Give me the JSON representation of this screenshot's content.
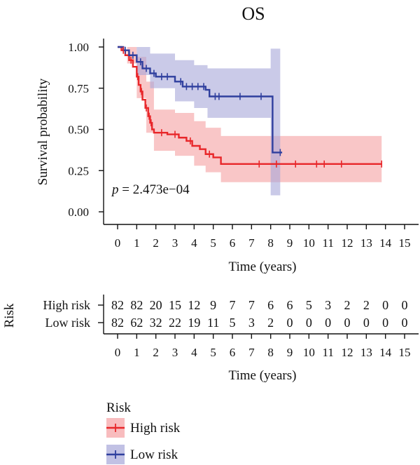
{
  "chart_data": {
    "type": "line",
    "title": "OS",
    "xlabel": "Time (years)",
    "ylabel": "Survival probability",
    "xlim": [
      0,
      15
    ],
    "ylim": [
      0,
      1
    ],
    "x_ticks": [
      0,
      1,
      2,
      3,
      4,
      5,
      6,
      7,
      8,
      9,
      10,
      11,
      12,
      13,
      14,
      15
    ],
    "y_ticks": [
      "0.00",
      "0.25",
      "0.50",
      "0.75",
      "1.00"
    ],
    "p_label": "p",
    "p_text": " = 2.473e−04",
    "series": [
      {
        "name": "High risk",
        "color": "#e8272a",
        "band_color": "#f5a0a2",
        "steps": [
          [
            0,
            1.0
          ],
          [
            0.2,
            0.98
          ],
          [
            0.4,
            0.95
          ],
          [
            0.6,
            0.92
          ],
          [
            0.8,
            0.88
          ],
          [
            1.0,
            0.82
          ],
          [
            1.1,
            0.77
          ],
          [
            1.2,
            0.73
          ],
          [
            1.3,
            0.68
          ],
          [
            1.45,
            0.63
          ],
          [
            1.6,
            0.58
          ],
          [
            1.7,
            0.54
          ],
          [
            1.8,
            0.5
          ],
          [
            1.9,
            0.48
          ],
          [
            2.6,
            0.47
          ],
          [
            3.2,
            0.45
          ],
          [
            3.6,
            0.43
          ],
          [
            3.9,
            0.4
          ],
          [
            4.3,
            0.38
          ],
          [
            4.6,
            0.35
          ],
          [
            5.0,
            0.33
          ],
          [
            5.4,
            0.29
          ],
          [
            13.8,
            0.29
          ]
        ],
        "upper": [
          [
            0,
            1.0
          ],
          [
            0.5,
            1.0
          ],
          [
            1.0,
            0.94
          ],
          [
            1.5,
            0.79
          ],
          [
            1.9,
            0.62
          ],
          [
            3.0,
            0.6
          ],
          [
            4.0,
            0.55
          ],
          [
            4.6,
            0.51
          ],
          [
            5.4,
            0.46
          ],
          [
            13.8,
            0.46
          ]
        ],
        "lower": [
          [
            0,
            1.0
          ],
          [
            0.5,
            0.9
          ],
          [
            1.0,
            0.69
          ],
          [
            1.5,
            0.48
          ],
          [
            1.9,
            0.37
          ],
          [
            3.0,
            0.34
          ],
          [
            4.0,
            0.28
          ],
          [
            4.6,
            0.24
          ],
          [
            5.4,
            0.18
          ],
          [
            13.8,
            0.18
          ]
        ],
        "censor_x": [
          0.3,
          0.7,
          1.05,
          1.25,
          1.5,
          1.65,
          1.75,
          2.3,
          3.0,
          3.8,
          4.8,
          7.4,
          8.3,
          9.3,
          10.4,
          10.8,
          11.7,
          13.8
        ]
      },
      {
        "name": "Low risk",
        "color": "#2f3f9e",
        "band_color": "#a6a6d8",
        "steps": [
          [
            0,
            1.0
          ],
          [
            0.3,
            0.98
          ],
          [
            0.6,
            0.95
          ],
          [
            1.0,
            0.91
          ],
          [
            1.3,
            0.87
          ],
          [
            1.7,
            0.84
          ],
          [
            2.0,
            0.82
          ],
          [
            3.0,
            0.79
          ],
          [
            3.4,
            0.76
          ],
          [
            4.6,
            0.74
          ],
          [
            4.8,
            0.7
          ],
          [
            8.0,
            0.7
          ],
          [
            8.1,
            0.36
          ],
          [
            8.6,
            0.36
          ]
        ],
        "upper": [
          [
            0,
            1.0
          ],
          [
            1.0,
            1.0
          ],
          [
            1.7,
            0.96
          ],
          [
            3.0,
            0.92
          ],
          [
            4.0,
            0.89
          ],
          [
            4.7,
            0.87
          ],
          [
            8.0,
            0.87
          ],
          [
            8.0,
            0.99
          ],
          [
            8.5,
            0.99
          ]
        ],
        "lower": [
          [
            0,
            1.0
          ],
          [
            1.0,
            0.83
          ],
          [
            1.7,
            0.75
          ],
          [
            3.0,
            0.67
          ],
          [
            4.0,
            0.63
          ],
          [
            4.7,
            0.57
          ],
          [
            8.0,
            0.57
          ],
          [
            8.0,
            0.1
          ],
          [
            8.5,
            0.1
          ]
        ],
        "censor_x": [
          0.4,
          0.8,
          1.2,
          1.5,
          1.9,
          2.3,
          2.6,
          3.3,
          3.6,
          3.9,
          4.2,
          4.5,
          5.1,
          5.3,
          6.4,
          7.5,
          8.5
        ]
      }
    ]
  },
  "risk_table": {
    "title": "Risk",
    "xlabel": "Time (years)",
    "times": [
      0,
      1,
      2,
      3,
      4,
      5,
      6,
      7,
      8,
      9,
      10,
      11,
      12,
      13,
      14,
      15
    ],
    "rows": [
      {
        "label": "High risk",
        "counts": [
          82,
          82,
          20,
          15,
          12,
          9,
          7,
          7,
          6,
          6,
          5,
          3,
          2,
          2,
          0,
          0
        ]
      },
      {
        "label": "Low risk",
        "counts": [
          82,
          62,
          32,
          22,
          19,
          11,
          5,
          3,
          2,
          0,
          0,
          0,
          0,
          0,
          0,
          0
        ]
      }
    ]
  },
  "legend": {
    "title": "Risk",
    "items": [
      {
        "label": "High risk",
        "color": "#e8272a",
        "band_color": "#f5a0a2"
      },
      {
        "label": "Low risk",
        "color": "#2f3f9e",
        "band_color": "#a6a6d8"
      }
    ]
  }
}
